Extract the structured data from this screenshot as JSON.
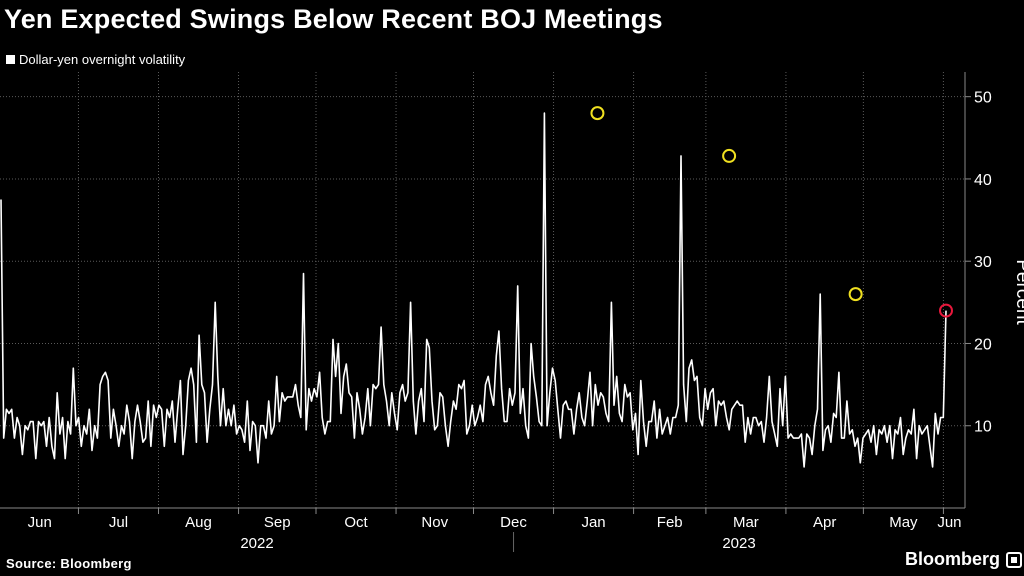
{
  "title": "Yen Expected Swings Below Recent BOJ Meetings",
  "legend": {
    "label": "Dollar-yen overnight volatility",
    "color": "#ffffff"
  },
  "source": "Source: Bloomberg",
  "brand": "Bloomberg",
  "chart_data": {
    "type": "line",
    "title": "Yen Expected Swings Below Recent BOJ Meetings",
    "ylabel": "Percent",
    "ylim": [
      0,
      53
    ],
    "yticks": [
      10,
      20,
      30,
      40,
      50
    ],
    "grid": true,
    "legend_position": "top-left",
    "months": [
      "Jun",
      "Jul",
      "Aug",
      "Sep",
      "Oct",
      "Nov",
      "Dec",
      "Jan",
      "Feb",
      "Mar",
      "Apr",
      "May",
      "Jun"
    ],
    "years": [
      "2022",
      "2023"
    ],
    "series": [
      {
        "name": "Dollar-yen overnight volatility",
        "color": "#ffffff",
        "x_start": "2022-06-01",
        "x_end": "2023-06-02",
        "values": [
          37.5,
          8.5,
          12,
          11.5,
          12,
          8.5,
          11,
          10,
          6.5,
          10,
          9.5,
          10.5,
          10.5,
          6,
          10.5,
          10,
          10.5,
          7.5,
          11,
          7.5,
          6,
          14,
          9,
          11,
          6,
          10.5,
          9,
          17,
          10,
          11,
          7.5,
          10,
          9,
          12,
          7,
          10,
          8.5,
          15,
          16,
          16.5,
          15.5,
          8.5,
          12,
          10,
          7.5,
          10,
          9,
          12.5,
          10.5,
          6,
          10.5,
          12.5,
          10.5,
          8,
          8.5,
          13,
          7.5,
          12.5,
          11,
          12.5,
          12,
          7.5,
          12,
          11,
          13,
          8,
          12,
          15.5,
          6.5,
          10,
          15.5,
          17,
          15,
          8,
          21,
          15,
          14,
          8,
          12,
          15,
          25,
          16,
          10,
          14.5,
          10,
          12,
          10,
          12.5,
          9,
          10,
          9.5,
          8,
          13,
          7,
          10.5,
          10,
          5.5,
          10,
          10,
          8.5,
          13,
          9,
          10,
          16,
          10.5,
          14,
          13,
          13.5,
          13.5,
          13.5,
          15,
          12.5,
          11,
          28.5,
          9.5,
          14.5,
          13,
          14.5,
          13.5,
          16.5,
          11,
          9,
          10.5,
          10.5,
          20.5,
          16,
          20,
          11.5,
          16,
          17.5,
          14,
          13.5,
          8.5,
          14,
          12,
          9,
          11,
          14.5,
          10,
          15,
          14.5,
          15,
          22,
          15,
          13,
          10,
          14,
          11.5,
          9.5,
          14,
          15,
          13,
          14,
          25,
          13,
          9,
          13,
          14.5,
          10.5,
          20.5,
          19.5,
          13,
          9.5,
          10,
          14,
          13.5,
          10,
          7.5,
          10.5,
          13,
          12,
          15,
          14.5,
          15.5,
          9,
          10,
          12.5,
          10,
          11,
          12.5,
          10.5,
          15,
          16,
          14,
          12.5,
          18.5,
          21.5,
          14.5,
          10.5,
          10.5,
          14.5,
          12.5,
          14,
          27,
          11.5,
          14.5,
          10,
          8.5,
          20,
          16,
          13.5,
          10.5,
          10,
          48,
          10,
          14,
          17,
          15.5,
          12,
          8.5,
          12.5,
          13,
          12,
          12,
          9,
          12,
          14,
          11,
          10,
          13,
          16.5,
          10,
          15,
          12.5,
          14,
          13.5,
          11.5,
          10.5,
          25,
          12.5,
          16,
          11.5,
          10.5,
          15,
          13.5,
          14,
          9.5,
          11.5,
          6.5,
          15.5,
          10.5,
          7.5,
          10.5,
          10.5,
          13,
          8.5,
          12,
          9,
          10,
          11,
          9,
          11,
          11,
          12.5,
          42.8,
          15,
          10.5,
          17,
          18,
          15.5,
          16,
          11,
          10,
          14.5,
          12,
          14,
          14.5,
          10,
          13,
          12.5,
          13,
          11,
          9.5,
          12,
          12.5,
          13,
          12.5,
          12.5,
          8,
          11,
          9,
          11,
          11,
          10,
          10.5,
          8,
          11,
          16,
          10.5,
          9,
          7.5,
          14.5,
          10,
          16,
          8.5,
          9,
          8.5,
          8.5,
          8.5,
          9,
          5,
          9,
          8.5,
          6.5,
          10,
          12,
          26,
          7,
          9.5,
          10,
          8,
          11.5,
          11,
          16.5,
          8.5,
          8.5,
          13,
          9,
          9.5,
          7.5,
          8.5,
          5.5,
          8.5,
          9,
          9.5,
          8,
          10,
          6.5,
          9.5,
          9,
          10,
          8,
          10,
          6,
          9.5,
          9,
          11,
          6.5,
          8.5,
          9.5,
          9,
          12,
          6,
          10,
          9,
          9.5,
          10,
          7.5,
          5,
          11.5,
          9,
          11,
          11,
          24
        ]
      }
    ],
    "markers": [
      {
        "date": "2023-01-18",
        "value": 48,
        "color": "#f0e020"
      },
      {
        "date": "2023-03-10",
        "value": 42.8,
        "color": "#f0e020"
      },
      {
        "date": "2023-04-28",
        "value": 26,
        "color": "#f0e020"
      },
      {
        "date": "2023-06-02",
        "value": 24,
        "color": "#e8183c"
      }
    ]
  }
}
